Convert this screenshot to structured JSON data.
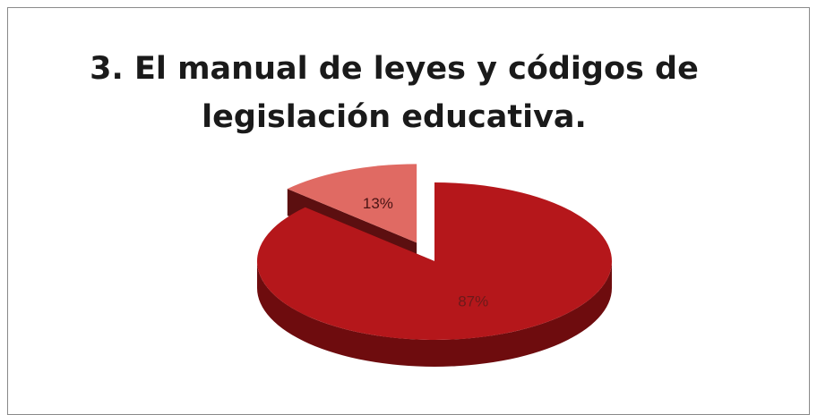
{
  "chart_data": {
    "type": "pie",
    "title_lines": [
      "3. El manual de leyes y códigos de",
      "legislación educativa."
    ],
    "slices": [
      {
        "value": 87,
        "label": "87%",
        "color": "#b5171b",
        "side": "#6e0c0e",
        "label_color": "#6b1a1a"
      },
      {
        "value": 13,
        "label": "13%",
        "color": "#e06a63",
        "side": "#5c0f10",
        "label_color": "#4a1414",
        "exploded": true
      }
    ],
    "style": "3d"
  }
}
